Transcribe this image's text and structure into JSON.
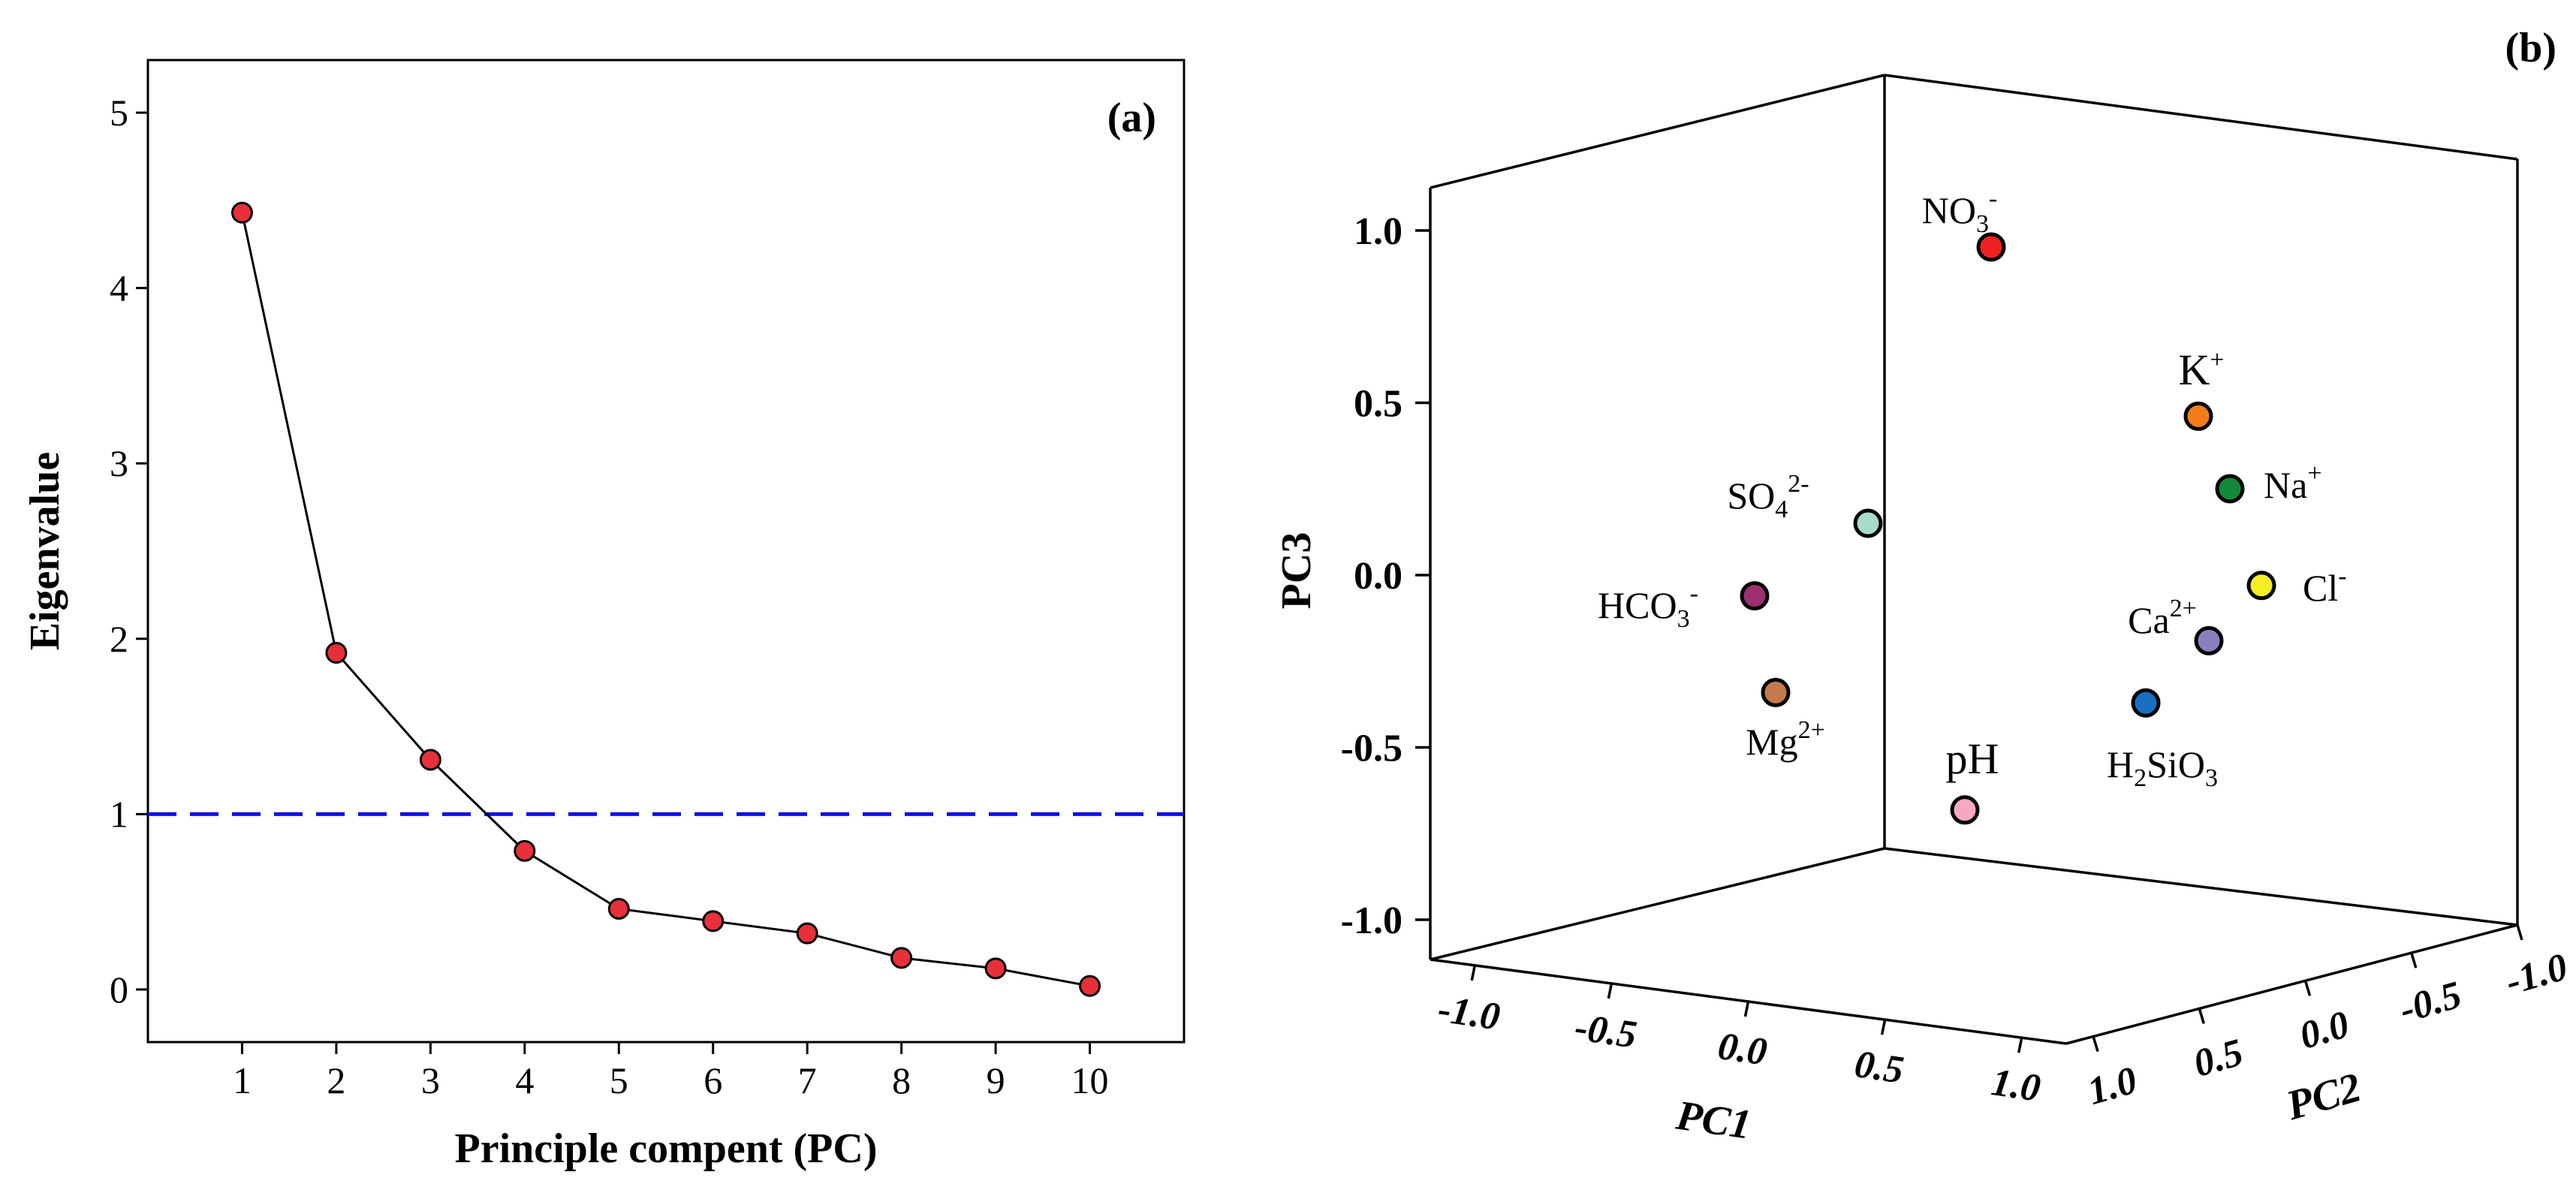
{
  "chart_data": [
    {
      "type": "line",
      "panel_label": "(a)",
      "xlabel": "Principle compent (PC)",
      "ylabel": "Eigenvalue",
      "xlim": [
        0,
        11
      ],
      "ylim": [
        -0.3,
        5.3
      ],
      "x_ticks": [
        "1",
        "2",
        "3",
        "4",
        "5",
        "6",
        "7",
        "8",
        "9",
        "10"
      ],
      "y_ticks": [
        "0",
        "1",
        "2",
        "3",
        "4",
        "5"
      ],
      "x": [
        1,
        2,
        3,
        4,
        5,
        6,
        7,
        8,
        9,
        10
      ],
      "values": [
        4.43,
        1.92,
        1.31,
        0.79,
        0.46,
        0.39,
        0.32,
        0.18,
        0.12,
        0.02
      ],
      "reference_line": {
        "y": 1.0,
        "style": "dashed",
        "color": "#1010e0"
      },
      "marker_color": "#e8303a",
      "line_color": "#000000"
    },
    {
      "type": "scatter",
      "subtype": "3d",
      "panel_label": "(b)",
      "xlabel": "PC1",
      "ylabel": "PC2",
      "zlabel": "PC3",
      "xlim": [
        -1.0,
        1.0
      ],
      "ylim": [
        1.0,
        -1.0
      ],
      "zlim": [
        -1.0,
        1.0
      ],
      "x_ticks": [
        "-1.0",
        "-0.5",
        "0.0",
        "0.5",
        "1.0"
      ],
      "y_ticks": [
        "1.0",
        "0.5",
        "0.0",
        "-0.5",
        "-1.0"
      ],
      "z_ticks": [
        "1.0",
        "0.5",
        "0.0",
        "-0.5",
        "-1.0"
      ],
      "points": [
        {
          "label": "NO",
          "sub": "3",
          "sup": "-",
          "value": 0.95,
          "color": "#ee2222"
        },
        {
          "label": "K",
          "sub": "",
          "sup": "+",
          "value": 0.46,
          "color": "#f07d1a"
        },
        {
          "label": "Na",
          "sub": "",
          "sup": "+",
          "value": 0.25,
          "color": "#128a3a"
        },
        {
          "label": "SO",
          "sub": "4",
          "sup": "2-",
          "value": 0.15,
          "color": "#a6dcc8"
        },
        {
          "label": "Cl",
          "sub": "",
          "sup": "-",
          "value": -0.03,
          "color": "#f4ee22"
        },
        {
          "label": "HCO",
          "sub": "3",
          "sup": "-",
          "value": -0.06,
          "color": "#9c3070"
        },
        {
          "label": "Ca",
          "sub": "",
          "sup": "2+",
          "value": -0.19,
          "color": "#8c7fbf"
        },
        {
          "label": "Mg",
          "sub": "",
          "sup": "2+",
          "value": -0.34,
          "color": "#c47a4c"
        },
        {
          "label": "H",
          "sub": "2",
          "sup": "",
          "label2": "SiO",
          "sub2": "3",
          "value": -0.37,
          "color": "#1a6fc2"
        },
        {
          "label": "pH",
          "sub": "",
          "sup": "",
          "value": -0.68,
          "color": "#f7a8c0"
        }
      ]
    }
  ]
}
